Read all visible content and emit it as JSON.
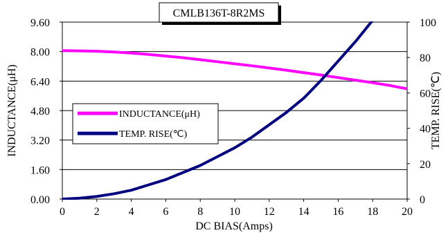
{
  "chart_data": {
    "type": "line",
    "title": "CMLB136T-8R2MS",
    "xlabel": "DC BIAS(Amps)",
    "ylabel": "INDUCTANCE(μH)",
    "y2label": "TEMP. RISE(℃)",
    "xlim": [
      0,
      20
    ],
    "ylim": [
      0,
      9.6
    ],
    "y2lim": [
      0,
      100
    ],
    "x_ticks": [
      "0",
      "2",
      "4",
      "6",
      "8",
      "10",
      "12",
      "14",
      "16",
      "18",
      "20"
    ],
    "y_ticks": [
      "0.00",
      "1.60",
      "3.20",
      "4.80",
      "6.40",
      "8.00",
      "9.60"
    ],
    "y2_ticks": [
      "0",
      "20",
      "40",
      "60",
      "80",
      "100"
    ],
    "grid": "horizontal",
    "legend_position": "left-middle",
    "series": [
      {
        "name": "INDUCTANCE(μH)",
        "axis": "left",
        "color": "#ff00ff",
        "x": [
          0,
          1,
          2,
          3,
          4,
          5,
          6,
          7,
          8,
          9,
          10,
          11,
          12,
          13,
          14,
          15,
          16,
          17,
          18,
          19,
          20
        ],
        "y": [
          8.05,
          8.04,
          8.02,
          7.98,
          7.92,
          7.85,
          7.76,
          7.67,
          7.56,
          7.45,
          7.34,
          7.23,
          7.11,
          6.99,
          6.86,
          6.73,
          6.59,
          6.45,
          6.31,
          6.16,
          5.98
        ]
      },
      {
        "name": "TEMP. RISE(℃)",
        "axis": "right",
        "color": "#000080",
        "x": [
          0,
          1,
          2,
          3,
          4,
          5,
          6,
          7,
          8,
          9,
          10,
          11,
          12,
          13,
          14,
          15,
          16,
          17,
          18
        ],
        "y": [
          0,
          0.5,
          1.5,
          3,
          5,
          8,
          11,
          15,
          19,
          24,
          29,
          35,
          42,
          49,
          57,
          67,
          78,
          89,
          101
        ]
      }
    ]
  }
}
